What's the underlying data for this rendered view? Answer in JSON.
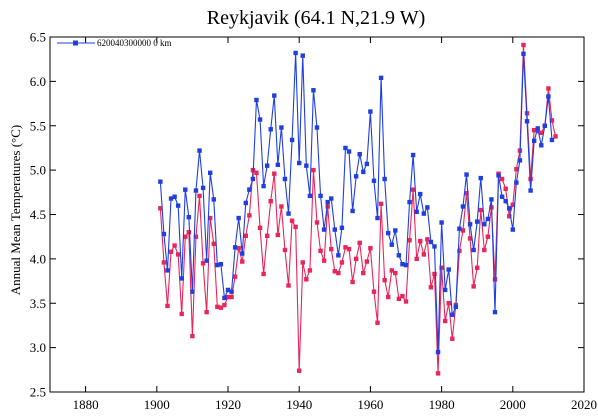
{
  "chart_data": {
    "type": "line",
    "title": "Reykjavik (64.1 N,21.9 W)",
    "xlabel": "",
    "ylabel": "Annual Mean Temperatures (°C)",
    "xlim": [
      1870,
      2020
    ],
    "ylim": [
      2.5,
      6.5
    ],
    "xticks": [
      1880,
      1900,
      1920,
      1940,
      1960,
      1980,
      2000,
      2020
    ],
    "yticks": [
      2.5,
      3.0,
      3.5,
      4.0,
      4.5,
      5.0,
      5.5,
      6.0,
      6.5
    ],
    "grid": false,
    "legend_position": "top-left",
    "series": [
      {
        "name": "620040300000 0 km",
        "color": "#1f3fe0",
        "marker": "square",
        "x": [
          1901,
          1902,
          1903,
          1904,
          1905,
          1906,
          1907,
          1908,
          1909,
          1910,
          1911,
          1912,
          1913,
          1914,
          1915,
          1916,
          1917,
          1918,
          1919,
          1920,
          1921,
          1922,
          1923,
          1924,
          1925,
          1926,
          1927,
          1928,
          1929,
          1930,
          1931,
          1932,
          1933,
          1934,
          1935,
          1936,
          1937,
          1938,
          1939,
          1940,
          1941,
          1942,
          1943,
          1944,
          1945,
          1946,
          1947,
          1948,
          1949,
          1950,
          1951,
          1952,
          1953,
          1954,
          1955,
          1956,
          1957,
          1958,
          1959,
          1960,
          1961,
          1962,
          1963,
          1964,
          1965,
          1966,
          1967,
          1968,
          1969,
          1970,
          1971,
          1972,
          1973,
          1974,
          1975,
          1976,
          1977,
          1978,
          1979,
          1980,
          1981,
          1982,
          1983,
          1984,
          1985,
          1986,
          1987,
          1988,
          1989,
          1990,
          1991,
          1992,
          1993,
          1994,
          1995,
          1996,
          1997,
          1998,
          1999,
          2000,
          2001,
          2002,
          2003,
          2004,
          2005,
          2006,
          2007,
          2008,
          2009,
          2010,
          2011
        ],
        "y": [
          4.87,
          4.28,
          3.87,
          4.68,
          4.7,
          4.6,
          3.78,
          4.78,
          4.47,
          3.63,
          4.77,
          5.22,
          4.8,
          3.98,
          4.97,
          4.67,
          3.93,
          3.94,
          3.56,
          3.65,
          3.63,
          4.13,
          4.46,
          4.06,
          4.63,
          4.78,
          4.9,
          5.79,
          5.57,
          4.82,
          5.05,
          5.46,
          5.84,
          5.06,
          5.48,
          4.9,
          4.51,
          5.34,
          6.32,
          5.08,
          6.29,
          5.05,
          4.71,
          5.9,
          5.48,
          4.71,
          4.33,
          4.64,
          4.68,
          4.33,
          4.04,
          4.35,
          5.25,
          5.21,
          4.54,
          4.93,
          5.18,
          4.98,
          5.07,
          5.66,
          4.88,
          4.46,
          6.04,
          4.9,
          4.29,
          4.16,
          4.32,
          4.04,
          3.94,
          3.93,
          4.64,
          5.17,
          4.53,
          4.73,
          4.51,
          4.58,
          4.19,
          4.14,
          2.95,
          4.41,
          3.65,
          3.88,
          3.37,
          3.46,
          4.34,
          4.59,
          4.95,
          4.39,
          4.1,
          4.42,
          4.91,
          4.39,
          4.45,
          4.67,
          3.4,
          4.94,
          4.7,
          4.65,
          4.57,
          4.33,
          4.86,
          5.11,
          6.31,
          5.55,
          4.77,
          5.33,
          5.47,
          5.28,
          5.5,
          5.83,
          5.34
        ]
      },
      {
        "name": "",
        "color": "#e8265a",
        "marker": "square",
        "x": [
          1901,
          1902,
          1903,
          1904,
          1905,
          1906,
          1907,
          1908,
          1909,
          1910,
          1911,
          1912,
          1913,
          1914,
          1915,
          1916,
          1917,
          1918,
          1919,
          1920,
          1921,
          1922,
          1923,
          1924,
          1925,
          1926,
          1927,
          1928,
          1929,
          1930,
          1931,
          1932,
          1933,
          1934,
          1935,
          1936,
          1937,
          1938,
          1939,
          1940,
          1941,
          1942,
          1943,
          1944,
          1945,
          1946,
          1947,
          1948,
          1949,
          1950,
          1951,
          1952,
          1953,
          1954,
          1955,
          1956,
          1957,
          1958,
          1959,
          1960,
          1961,
          1962,
          1963,
          1964,
          1965,
          1966,
          1967,
          1968,
          1969,
          1970,
          1971,
          1972,
          1973,
          1974,
          1975,
          1976,
          1977,
          1978,
          1979,
          1980,
          1981,
          1982,
          1983,
          1984,
          1985,
          1986,
          1987,
          1988,
          1989,
          1990,
          1991,
          1992,
          1993,
          1994,
          1995,
          1996,
          1997,
          1998,
          1999,
          2000,
          2001,
          2002,
          2003,
          2004,
          2005,
          2006,
          2007,
          2008,
          2009,
          2010,
          2011,
          2012
        ],
        "y": [
          4.57,
          3.96,
          3.47,
          4.08,
          4.15,
          4.05,
          3.38,
          4.25,
          4.3,
          3.13,
          4.25,
          4.71,
          3.95,
          3.4,
          4.46,
          4.17,
          3.46,
          3.45,
          3.48,
          3.57,
          3.57,
          3.8,
          4.12,
          3.97,
          4.26,
          4.49,
          5.0,
          4.97,
          4.35,
          3.83,
          4.26,
          4.65,
          4.96,
          4.27,
          4.59,
          4.1,
          3.7,
          4.43,
          4.36,
          2.74,
          3.96,
          3.77,
          3.87,
          5.0,
          4.41,
          4.09,
          3.98,
          4.59,
          4.11,
          3.86,
          3.84,
          3.96,
          4.13,
          4.11,
          3.74,
          4.0,
          4.18,
          3.84,
          3.97,
          4.12,
          3.63,
          3.28,
          4.62,
          3.76,
          3.57,
          3.87,
          3.84,
          3.55,
          3.58,
          3.52,
          4.21,
          4.78,
          4.0,
          4.2,
          4.05,
          4.22,
          3.68,
          3.83,
          2.71,
          3.9,
          3.3,
          3.5,
          3.1,
          3.48,
          4.09,
          4.32,
          4.74,
          4.23,
          3.69,
          3.9,
          4.55,
          4.1,
          4.25,
          4.58,
          3.77,
          4.96,
          4.9,
          4.79,
          4.48,
          4.61,
          5.01,
          5.22,
          6.41,
          5.64,
          4.9,
          5.45,
          5.44,
          5.42,
          5.5,
          5.92,
          5.56,
          5.38
        ]
      }
    ]
  }
}
